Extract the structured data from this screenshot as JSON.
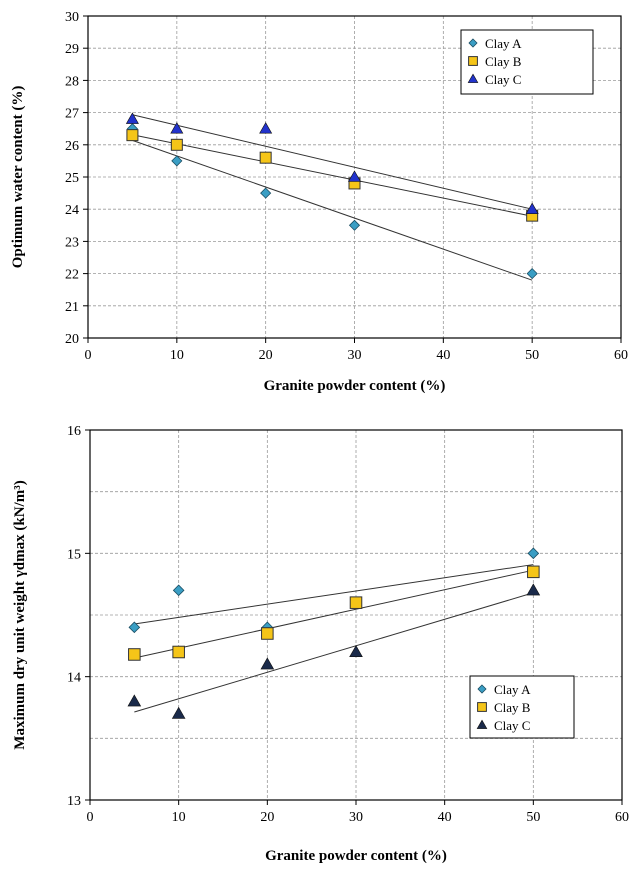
{
  "chart_data": [
    {
      "type": "scatter",
      "xlabel": "Granite powder content (%)",
      "ylabel": "Optimum water content (%)",
      "xlim": [
        0,
        60
      ],
      "ylim": [
        20,
        30
      ],
      "xticks": [
        0,
        10,
        20,
        30,
        40,
        50,
        60
      ],
      "yticks": [
        20,
        21,
        22,
        23,
        24,
        25,
        26,
        27,
        28,
        29,
        30
      ],
      "grid": true,
      "trendlines": true,
      "legend_position": "top-right",
      "series": [
        {
          "name": "Clay A",
          "marker": "diamond",
          "color": "#3a9ec4",
          "x": [
            5,
            10,
            20,
            30,
            50
          ],
          "y": [
            26.5,
            25.5,
            24.5,
            23.5,
            22.0
          ]
        },
        {
          "name": "Clay B",
          "marker": "square",
          "color": "#f5c518",
          "x": [
            5,
            10,
            20,
            30,
            50
          ],
          "y": [
            26.3,
            26.0,
            25.6,
            24.8,
            23.8
          ]
        },
        {
          "name": "Clay C",
          "marker": "triangle",
          "color": "#2233cc",
          "x": [
            5,
            10,
            20,
            30,
            50
          ],
          "y": [
            26.8,
            26.5,
            26.5,
            25.0,
            24.0
          ]
        }
      ]
    },
    {
      "type": "scatter",
      "xlabel": "Granite powder content (%)",
      "ylabel": "Maximum dry unit weight   γdmax  (kN/m³)",
      "xlim": [
        0,
        60
      ],
      "ylim": [
        13,
        16
      ],
      "xticks": [
        0,
        10,
        20,
        30,
        40,
        50,
        60
      ],
      "yticks": [
        13,
        14,
        15,
        16
      ],
      "minor_yticks": [
        13.5,
        14.5,
        15.5
      ],
      "grid": true,
      "trendlines": true,
      "legend_position": "bottom-right",
      "series": [
        {
          "name": "Clay A",
          "marker": "diamond",
          "color": "#3a9ec4",
          "x": [
            5,
            10,
            20,
            30,
            50
          ],
          "y": [
            14.4,
            14.7,
            14.4,
            14.6,
            15.0
          ]
        },
        {
          "name": "Clay B",
          "marker": "square",
          "color": "#f5c518",
          "x": [
            5,
            10,
            20,
            30,
            50
          ],
          "y": [
            14.18,
            14.2,
            14.35,
            14.6,
            14.85
          ]
        },
        {
          "name": "Clay C",
          "marker": "triangle",
          "color": "#1a2a4a",
          "x": [
            5,
            10,
            20,
            30,
            50
          ],
          "y": [
            13.8,
            13.7,
            14.1,
            14.2,
            14.7
          ]
        }
      ]
    }
  ]
}
